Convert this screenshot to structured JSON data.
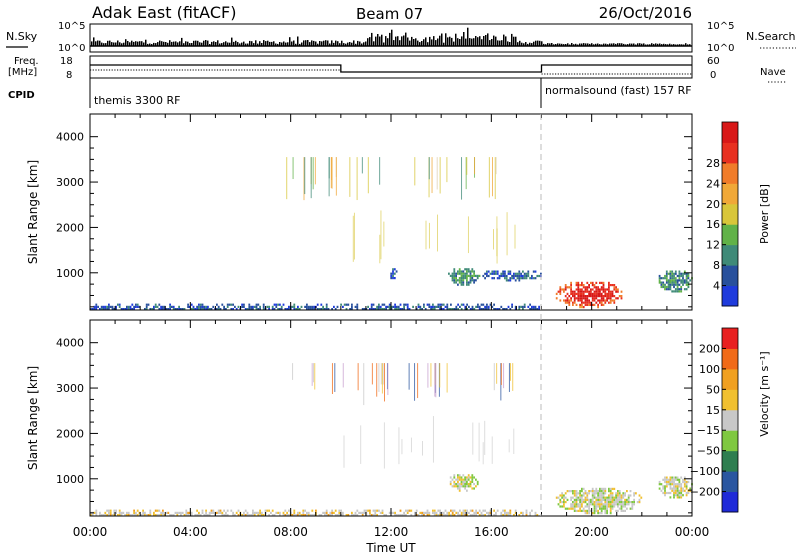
{
  "header": {
    "station": "Adak East (fitACF)",
    "beam": "Beam 07",
    "date": "26/Oct/2016"
  },
  "summary": {
    "nsky_label": "N.Sky",
    "nsearch_label": "N.Search",
    "freq_label_1": "Freq.",
    "freq_label_2": "[MHz]",
    "nave_label": "Nave",
    "cpid_label": "CPID",
    "nsky_ticks_left": [
      "10^5",
      "10^0"
    ],
    "nsky_ticks_right": [
      "10^5",
      "10^0"
    ],
    "freq_ticks_left": [
      "18",
      "8"
    ],
    "nave_ticks_right": [
      "60",
      "0"
    ],
    "cpid_segments": [
      {
        "label": "themis 3300 RF",
        "start_hour": 0,
        "end_hour": 18
      },
      {
        "label": "normalsound (fast) 157 RF",
        "start_hour": 18,
        "end_hour": 24
      }
    ]
  },
  "chart_data": [
    {
      "type": "heatmap",
      "name": "power",
      "ylabel": "Slant Range [km]",
      "xlabel": "",
      "x_unit": "hours UT",
      "xlim": [
        0,
        24
      ],
      "ylim": [
        180,
        4500
      ],
      "yticks": [
        "1000",
        "2000",
        "3000",
        "4000"
      ],
      "colorbar_label": "Power [dB]",
      "colorbar_ticks": [
        "4",
        "8",
        "12",
        "16",
        "20",
        "24",
        "28"
      ],
      "colorbar_colors": [
        "#1f3bdc",
        "#28509c",
        "#3f8a78",
        "#61b248",
        "#d8c63a",
        "#f0a838",
        "#f07c2a",
        "#e83020",
        "#d81818"
      ],
      "regions": [
        {
          "t0": 0,
          "t1": 17.9,
          "r0": 180,
          "r1": 320,
          "value_level": 1
        },
        {
          "t0": 11.9,
          "t1": 12.2,
          "r0": 850,
          "r1": 1150,
          "value_level": 1
        },
        {
          "t0": 14.2,
          "t1": 15.5,
          "r0": 750,
          "r1": 1150,
          "value_level": 2
        },
        {
          "t0": 15.5,
          "t1": 18,
          "r0": 850,
          "r1": 1100,
          "value_level": 1
        },
        {
          "t0": 18.5,
          "t1": 21.3,
          "r0": 250,
          "r1": 850,
          "value_level": 6
        },
        {
          "t0": 22.6,
          "t1": 24,
          "r0": 600,
          "r1": 1100,
          "value_level": 2
        }
      ]
    },
    {
      "type": "heatmap",
      "name": "velocity",
      "ylabel": "Slant Range [km]",
      "xlabel": "Time UT",
      "x_unit": "hours UT",
      "xlim": [
        0,
        24
      ],
      "ylim": [
        180,
        4500
      ],
      "xticks": [
        "00:00",
        "04:00",
        "08:00",
        "12:00",
        "16:00",
        "20:00",
        "00:00"
      ],
      "yticks": [
        "1000",
        "2000",
        "3000",
        "4000"
      ],
      "colorbar_label": "Velocity [m s⁻¹]",
      "colorbar_ticks": [
        "200",
        "100",
        "50",
        "15",
        "−15",
        "−50",
        "−100",
        "−200"
      ],
      "colorbar_colors": [
        "#1f2ad8",
        "#2a56a0",
        "#2e7e50",
        "#7fc840",
        "#c8c8c8",
        "#f0c030",
        "#f0a020",
        "#f06a18",
        "#e82020"
      ],
      "regions": [
        {
          "t0": 0,
          "t1": 17.9,
          "r0": 180,
          "r1": 320,
          "value_level": 5
        },
        {
          "t0": 14.2,
          "t1": 15.5,
          "r0": 750,
          "r1": 1150,
          "value_level": 4
        },
        {
          "t0": 18.5,
          "t1": 22.0,
          "r0": 250,
          "r1": 850,
          "value_level": 4
        },
        {
          "t0": 22.6,
          "t1": 24,
          "r0": 600,
          "r1": 1100,
          "value_level": 4
        }
      ]
    }
  ]
}
